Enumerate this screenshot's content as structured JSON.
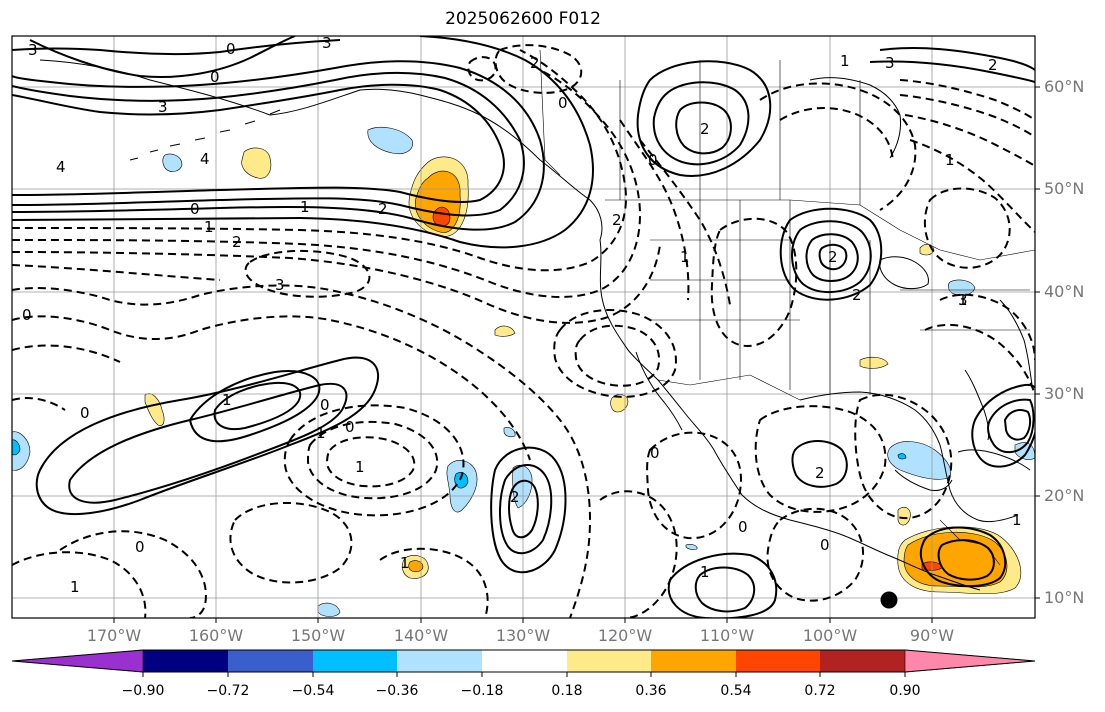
{
  "title": "2025062600 F012",
  "lat_labels": [
    "60°N",
    "50°N",
    "40°N",
    "30°N",
    "20°N",
    "10°N"
  ],
  "lon_labels": [
    "170°W",
    "160°W",
    "150°W",
    "140°W",
    "130°W",
    "120°W",
    "110°W",
    "100°W",
    "90°W"
  ],
  "colorbar": {
    "ticks": [
      "−0.90",
      "−0.72",
      "−0.54",
      "−0.36",
      "−0.18",
      "0.18",
      "0.36",
      "0.54",
      "0.72",
      "0.90"
    ],
    "colors": [
      "#9b30d0",
      "#000080",
      "#3a5fcd",
      "#00bfff",
      "#b0e2ff",
      "#ffffff",
      "#ffea8a",
      "#ffa500",
      "#ff4500",
      "#b22222",
      "#ff88aa"
    ]
  },
  "contour_labels": [
    "3",
    "0",
    "3",
    "0",
    "3",
    "2",
    "4",
    "4",
    "0",
    "1",
    "2",
    "2",
    "1",
    "0",
    "1",
    "2",
    "3",
    "3",
    "0",
    "2",
    "1",
    "0",
    "2",
    "1",
    "2",
    "2",
    "1",
    "1",
    "0",
    "0",
    "1",
    "0",
    "1",
    "2",
    "2",
    "0",
    "1",
    "1",
    "1",
    "0",
    "0",
    "0",
    "3",
    "1"
  ],
  "colors": {
    "shade_light_yellow": "#ffea8a",
    "shade_orange": "#ffa500",
    "shade_red": "#ff4500",
    "shade_light_blue": "#b0e2ff",
    "shade_cyan": "#00bfff"
  }
}
